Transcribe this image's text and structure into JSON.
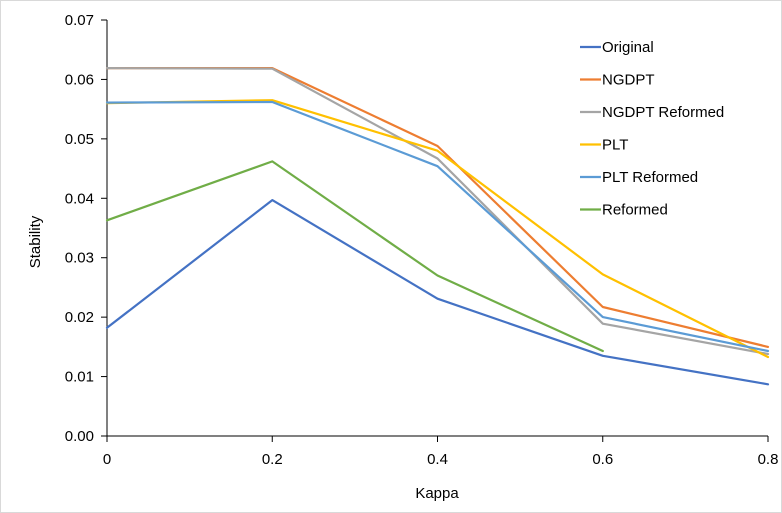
{
  "chart_data": {
    "type": "line",
    "title": "",
    "xlabel": "Kappa",
    "ylabel": "Stability",
    "xlim": [
      0,
      0.8
    ],
    "ylim": [
      0,
      0.07
    ],
    "xticks": [
      0,
      0.2,
      0.4,
      0.6,
      0.8
    ],
    "xtick_labels": [
      "0",
      "0.2",
      "0.4",
      "0.6",
      "0.8"
    ],
    "yticks": [
      0,
      0.01,
      0.02,
      0.03,
      0.04,
      0.05,
      0.06,
      0.07
    ],
    "ytick_labels": [
      "0.00",
      "0.01",
      "0.02",
      "0.03",
      "0.04",
      "0.05",
      "0.06",
      "0.07"
    ],
    "grid": false,
    "legend_position": "top-right",
    "series": [
      {
        "name": "Original",
        "color": "#4472C4",
        "x": [
          0,
          0.2,
          0.4,
          0.6,
          0.8
        ],
        "y": [
          0.0182,
          0.0397,
          0.0231,
          0.0135,
          0.0087
        ]
      },
      {
        "name": "NGDPT",
        "color": "#ED7D31",
        "x": [
          0,
          0.2,
          0.4,
          0.6,
          0.8
        ],
        "y": [
          0.0619,
          0.0619,
          0.0488,
          0.0217,
          0.015
        ]
      },
      {
        "name": "NGDPT Reformed",
        "color": "#A5A5A5",
        "x": [
          0,
          0.2,
          0.4,
          0.6,
          0.8
        ],
        "y": [
          0.0619,
          0.0618,
          0.0467,
          0.0189,
          0.0138
        ]
      },
      {
        "name": "PLT",
        "color": "#FFC000",
        "x": [
          0,
          0.2,
          0.4,
          0.6,
          0.8
        ],
        "y": [
          0.056,
          0.0565,
          0.048,
          0.0272,
          0.0133
        ]
      },
      {
        "name": "PLT Reformed",
        "color": "#5B9BD5",
        "x": [
          0,
          0.2,
          0.4,
          0.6,
          0.8
        ],
        "y": [
          0.0561,
          0.0562,
          0.0454,
          0.02,
          0.0143
        ]
      },
      {
        "name": "Reformed",
        "color": "#70AD47",
        "x": [
          0,
          0.2,
          0.4,
          0.6
        ],
        "y": [
          0.0363,
          0.0462,
          0.027,
          0.0143
        ]
      }
    ]
  }
}
